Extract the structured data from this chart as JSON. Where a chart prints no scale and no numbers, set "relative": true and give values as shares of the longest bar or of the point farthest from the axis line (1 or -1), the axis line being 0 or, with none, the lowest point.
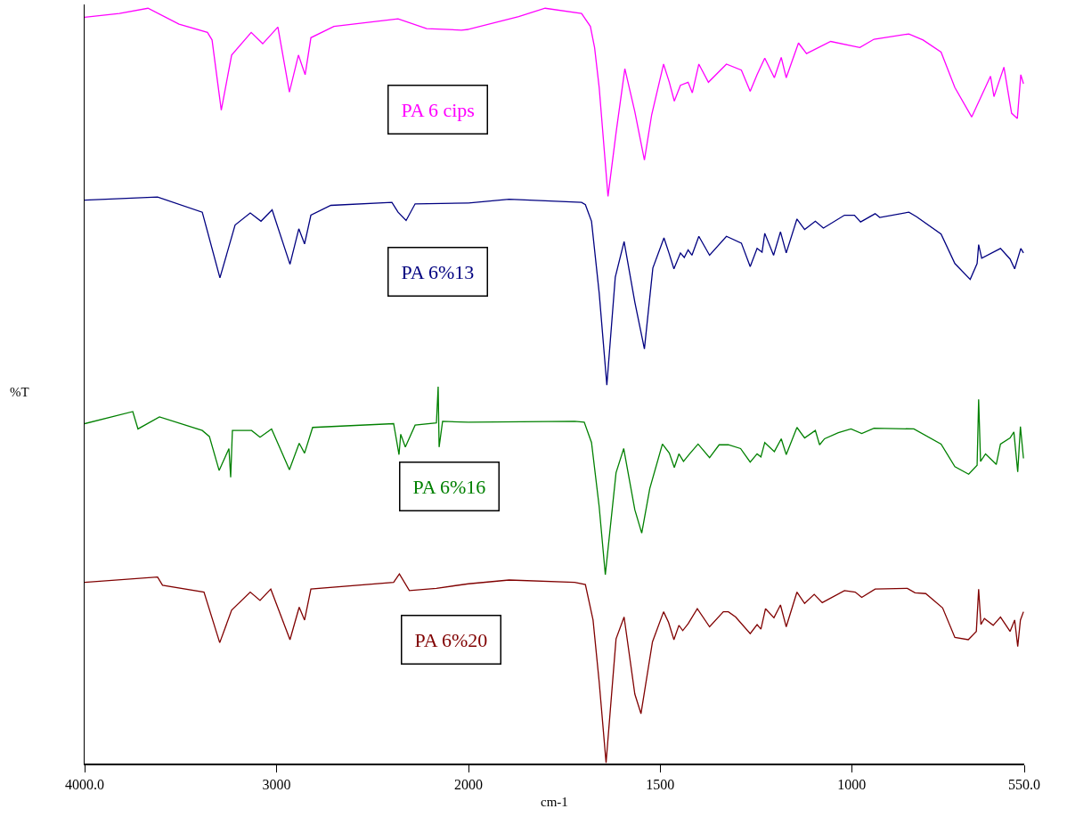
{
  "chart_data": [
    {
      "type": "line",
      "relative": true,
      "ylabel": "%T",
      "xlim": [
        4000,
        2000
      ],
      "xticks": [
        {
          "value": 4000,
          "label": "4000.0"
        },
        3000,
        {
          "value": 2000,
          "label": null
        }
      ],
      "grid": false,
      "legend": false,
      "marker": "none",
      "line_style": "solid",
      "series": [
        {
          "name": "PA 6 cips",
          "color": "#ff00ff",
          "x": [
            4000,
            3819,
            3670,
            3508,
            3360,
            3336,
            3288,
            3234,
            3132,
            3072,
            2993,
            2933,
            2886,
            2851,
            2821,
            2701,
            2367,
            2218,
            2037,
            2000
          ],
          "values": [
            0.988,
            0.993,
            1.0,
            0.979,
            0.968,
            0.958,
            0.865,
            0.938,
            0.968,
            0.953,
            0.975,
            0.889,
            0.938,
            0.912,
            0.961,
            0.976,
            0.986,
            0.973,
            0.971,
            0.972
          ]
        },
        {
          "name": "PA 6%13",
          "color": "#000080",
          "x": [
            4000,
            3620,
            3387,
            3295,
            3216,
            3137,
            3081,
            3023,
            2930,
            2884,
            2854,
            2821,
            2717,
            2399,
            2367,
            2325,
            2278,
            2000
          ],
          "values": [
            0.746,
            0.75,
            0.73,
            0.643,
            0.713,
            0.729,
            0.718,
            0.733,
            0.661,
            0.708,
            0.688,
            0.726,
            0.739,
            0.743,
            0.73,
            0.719,
            0.741,
            0.742
          ]
        },
        {
          "name": "PA 6%16",
          "color": "#008000",
          "x": [
            4000,
            3749,
            3722,
            3610,
            3387,
            3350,
            3299,
            3248,
            3239,
            3230,
            3130,
            3086,
            3026,
            2933,
            2882,
            2854,
            2812,
            2390,
            2362,
            2353,
            2329,
            2278,
            2167,
            2158,
            2153,
            2135,
            2000
          ],
          "values": [
            0.45,
            0.466,
            0.443,
            0.459,
            0.441,
            0.433,
            0.388,
            0.417,
            0.379,
            0.441,
            0.441,
            0.432,
            0.443,
            0.389,
            0.424,
            0.411,
            0.445,
            0.45,
            0.409,
            0.436,
            0.419,
            0.448,
            0.451,
            0.499,
            0.419,
            0.453,
            0.452
          ]
        },
        {
          "name": "PA 6%20",
          "color": "#800000",
          "x": [
            4000,
            3620,
            3594,
            3378,
            3296,
            3234,
            3137,
            3086,
            3030,
            2930,
            2882,
            2854,
            2821,
            2390,
            2360,
            2308,
            2167,
            2000
          ],
          "values": [
            0.24,
            0.247,
            0.236,
            0.227,
            0.16,
            0.203,
            0.227,
            0.216,
            0.231,
            0.164,
            0.207,
            0.19,
            0.231,
            0.24,
            0.251,
            0.229,
            0.232,
            0.238
          ]
        }
      ]
    },
    {
      "type": "line",
      "relative": true,
      "xlabel": "cm-1",
      "xlim": [
        2000,
        550
      ],
      "xticks": [
        2000,
        1500,
        1000,
        {
          "value": 550,
          "label": "550.0"
        }
      ],
      "grid": false,
      "legend": false,
      "marker": "none",
      "line_style": "solid",
      "series": [
        {
          "color": "#ff00ff",
          "x": [
            2000,
            1869,
            1800,
            1705,
            1682,
            1671,
            1659,
            1636,
            1615,
            1592,
            1566,
            1541,
            1522,
            1491,
            1476,
            1463,
            1447,
            1427,
            1416,
            1399,
            1374,
            1327,
            1288,
            1265,
            1247,
            1227,
            1202,
            1184,
            1171,
            1139,
            1118,
            1055,
            979,
            942,
            851,
            814,
            767,
            731,
            687,
            638,
            629,
            603,
            583,
            568,
            559,
            552
          ],
          "values": [
            0.972,
            0.989,
            1.0,
            0.993,
            0.976,
            0.948,
            0.895,
            0.751,
            0.835,
            0.92,
            0.863,
            0.799,
            0.859,
            0.926,
            0.902,
            0.877,
            0.898,
            0.902,
            0.888,
            0.926,
            0.902,
            0.926,
            0.918,
            0.89,
            0.912,
            0.934,
            0.908,
            0.935,
            0.908,
            0.954,
            0.94,
            0.956,
            0.948,
            0.959,
            0.966,
            0.958,
            0.942,
            0.895,
            0.856,
            0.91,
            0.883,
            0.922,
            0.861,
            0.854,
            0.912,
            0.9
          ]
        },
        {
          "color": "#000080",
          "x": [
            2000,
            1894,
            1705,
            1695,
            1679,
            1659,
            1639,
            1617,
            1594,
            1566,
            1541,
            1519,
            1490,
            1477,
            1464,
            1447,
            1437,
            1427,
            1417,
            1399,
            1371,
            1327,
            1288,
            1265,
            1247,
            1234,
            1227,
            1204,
            1186,
            1171,
            1143,
            1123,
            1095,
            1074,
            1019,
            993,
            977,
            939,
            927,
            851,
            831,
            767,
            731,
            691,
            673,
            669,
            661,
            612,
            587,
            575,
            559,
            552
          ],
          "values": [
            0.742,
            0.747,
            0.743,
            0.74,
            0.718,
            0.623,
            0.501,
            0.644,
            0.691,
            0.611,
            0.549,
            0.656,
            0.696,
            0.676,
            0.655,
            0.676,
            0.67,
            0.68,
            0.673,
            0.698,
            0.673,
            0.698,
            0.689,
            0.658,
            0.682,
            0.677,
            0.702,
            0.673,
            0.704,
            0.676,
            0.721,
            0.707,
            0.718,
            0.709,
            0.726,
            0.726,
            0.717,
            0.728,
            0.723,
            0.73,
            0.724,
            0.701,
            0.662,
            0.641,
            0.662,
            0.687,
            0.669,
            0.682,
            0.668,
            0.655,
            0.682,
            0.676
          ]
        },
        {
          "color": "#008000",
          "x": [
            2000,
            1723,
            1698,
            1679,
            1659,
            1643,
            1615,
            1595,
            1566,
            1548,
            1527,
            1494,
            1476,
            1463,
            1451,
            1439,
            1423,
            1401,
            1371,
            1346,
            1322,
            1290,
            1265,
            1247,
            1237,
            1227,
            1202,
            1184,
            1171,
            1143,
            1123,
            1095,
            1084,
            1071,
            1035,
            1002,
            974,
            942,
            838,
            767,
            731,
            695,
            673,
            669,
            664,
            651,
            623,
            612,
            587,
            577,
            567,
            560,
            552
          ],
          "values": [
            0.452,
            0.453,
            0.452,
            0.425,
            0.34,
            0.25,
            0.385,
            0.417,
            0.336,
            0.305,
            0.364,
            0.423,
            0.411,
            0.392,
            0.41,
            0.4,
            0.41,
            0.423,
            0.405,
            0.422,
            0.422,
            0.417,
            0.399,
            0.41,
            0.406,
            0.425,
            0.413,
            0.43,
            0.409,
            0.445,
            0.431,
            0.441,
            0.422,
            0.43,
            0.438,
            0.443,
            0.437,
            0.444,
            0.443,
            0.423,
            0.393,
            0.383,
            0.395,
            0.482,
            0.4,
            0.41,
            0.396,
            0.423,
            0.431,
            0.439,
            0.386,
            0.446,
            0.404
          ]
        },
        {
          "color": "#800000",
          "x": [
            2000,
            1894,
            1723,
            1695,
            1675,
            1659,
            1641,
            1615,
            1594,
            1566,
            1550,
            1520,
            1491,
            1478,
            1464,
            1451,
            1441,
            1427,
            1403,
            1371,
            1335,
            1322,
            1303,
            1265,
            1247,
            1237,
            1225,
            1203,
            1186,
            1171,
            1143,
            1123,
            1098,
            1077,
            1019,
            991,
            974,
            939,
            855,
            835,
            807,
            763,
            731,
            696,
            675,
            669,
            663,
            654,
            631,
            612,
            587,
            575,
            567,
            560,
            552
          ],
          "values": [
            0.238,
            0.243,
            0.24,
            0.237,
            0.19,
            0.108,
            0.001,
            0.165,
            0.194,
            0.092,
            0.066,
            0.161,
            0.201,
            0.187,
            0.164,
            0.183,
            0.176,
            0.185,
            0.205,
            0.181,
            0.201,
            0.201,
            0.194,
            0.172,
            0.184,
            0.178,
            0.205,
            0.193,
            0.21,
            0.181,
            0.227,
            0.212,
            0.224,
            0.213,
            0.229,
            0.227,
            0.22,
            0.231,
            0.232,
            0.226,
            0.225,
            0.206,
            0.167,
            0.164,
            0.175,
            0.231,
            0.184,
            0.192,
            0.183,
            0.194,
            0.175,
            0.19,
            0.155,
            0.19,
            0.201
          ]
        }
      ]
    }
  ]
}
